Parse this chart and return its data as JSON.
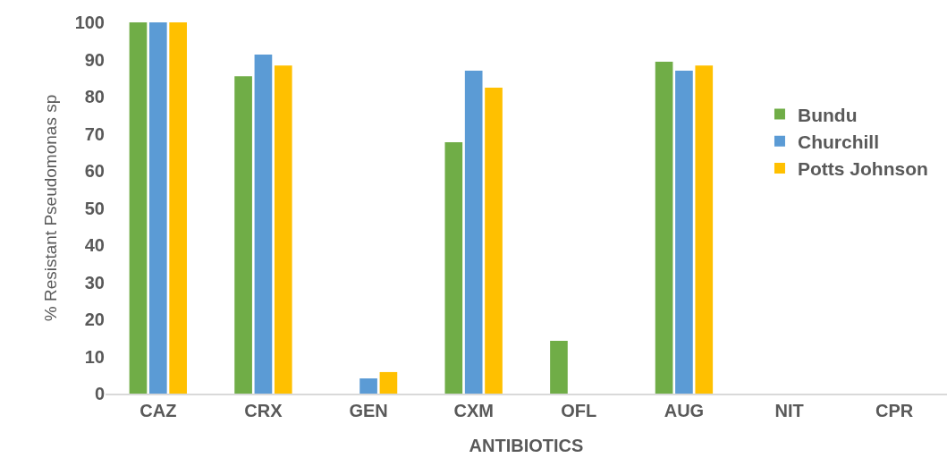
{
  "chart_data": {
    "type": "bar",
    "xlabel": "ANTIBIOTICS",
    "ylabel": "% Resistant Pseudomonas sp",
    "categories": [
      "CAZ",
      "CRX",
      "GEN",
      "CXM",
      "OFL",
      "AUG",
      "NIT",
      "CPR"
    ],
    "series": [
      {
        "name": "Bundu",
        "color": "#70ad47",
        "values": [
          100,
          85.5,
          0,
          67.7,
          14.2,
          89.4,
          0,
          0
        ]
      },
      {
        "name": "Churchill",
        "color": "#5b9bd5",
        "values": [
          100,
          91.3,
          4.1,
          87,
          0,
          87,
          0,
          0
        ]
      },
      {
        "name": "Potts Johnson",
        "color": "#ffc000",
        "values": [
          100,
          88.4,
          5.8,
          82.4,
          0,
          88.4,
          0,
          0
        ]
      }
    ],
    "ylim": [
      0,
      100
    ],
    "yticks": [
      0,
      10,
      20,
      30,
      40,
      50,
      60,
      70,
      80,
      90,
      100
    ],
    "grid": false,
    "legend": "right"
  }
}
